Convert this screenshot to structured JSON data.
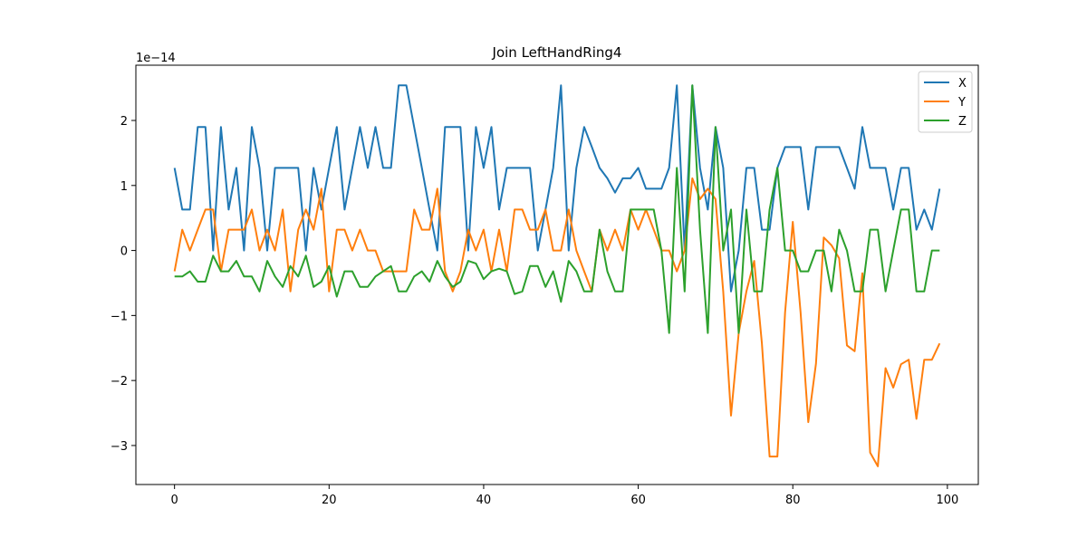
{
  "chart_data": {
    "type": "line",
    "title": "Join LeftHandRing4",
    "xlabel": "",
    "ylabel": "",
    "offset_label": "1e−14",
    "xlim": [
      -5,
      104
    ],
    "ylim": [
      -3.6,
      2.85
    ],
    "x_ticks": [
      0,
      20,
      40,
      60,
      80,
      100
    ],
    "y_ticks": [
      -3,
      -2,
      -1,
      0,
      1,
      2
    ],
    "y_tick_labels": [
      "−3",
      "−2",
      "−1",
      "0",
      "1",
      "2"
    ],
    "grid": false,
    "legend_position": "top-right",
    "x": [
      0,
      1,
      2,
      3,
      4,
      5,
      6,
      7,
      8,
      9,
      10,
      11,
      12,
      13,
      14,
      15,
      16,
      17,
      18,
      19,
      20,
      21,
      22,
      23,
      24,
      25,
      26,
      27,
      28,
      29,
      30,
      31,
      32,
      33,
      34,
      35,
      36,
      37,
      38,
      39,
      40,
      41,
      42,
      43,
      44,
      45,
      46,
      47,
      48,
      49,
      50,
      51,
      52,
      53,
      54,
      55,
      56,
      57,
      58,
      59,
      60,
      61,
      62,
      63,
      64,
      65,
      66,
      67,
      68,
      69,
      70,
      71,
      72,
      73,
      74,
      75,
      76,
      77,
      78,
      79,
      80,
      81,
      82,
      83,
      84,
      85,
      86,
      87,
      88,
      89,
      90,
      91,
      92,
      93,
      94,
      95,
      96,
      97,
      98,
      99
    ],
    "series": [
      {
        "name": "X",
        "color": "#1f77b4",
        "values": [
          1.27,
          0.63,
          0.63,
          1.9,
          1.9,
          0.0,
          1.9,
          0.63,
          1.27,
          0.0,
          1.9,
          1.27,
          0.0,
          1.27,
          1.27,
          1.27,
          1.27,
          0.0,
          1.27,
          0.63,
          1.27,
          1.9,
          0.63,
          1.27,
          1.9,
          1.27,
          1.9,
          1.27,
          1.27,
          2.54,
          2.54,
          1.9,
          1.27,
          0.63,
          0.0,
          1.9,
          1.9,
          1.9,
          0.0,
          1.9,
          1.27,
          1.9,
          0.63,
          1.27,
          1.27,
          1.27,
          1.27,
          0.0,
          0.63,
          1.27,
          2.54,
          0.0,
          1.27,
          1.9,
          1.59,
          1.27,
          1.11,
          0.89,
          1.11,
          1.11,
          1.27,
          0.95,
          0.95,
          0.95,
          1.27,
          2.54,
          0.0,
          2.54,
          1.27,
          0.63,
          1.9,
          1.27,
          -0.63,
          0.0,
          1.27,
          1.27,
          0.32,
          0.32,
          1.27,
          1.59,
          1.59,
          1.59,
          0.63,
          1.59,
          1.59,
          1.59,
          1.59,
          1.27,
          0.95,
          1.9,
          1.27,
          1.27,
          1.27,
          0.63,
          1.27,
          1.27,
          0.32,
          0.63,
          0.32,
          0.95
        ]
      },
      {
        "name": "Y",
        "color": "#ff7f0e",
        "values": [
          -0.32,
          0.32,
          0.0,
          0.32,
          0.63,
          0.63,
          -0.32,
          0.32,
          0.32,
          0.32,
          0.63,
          0.0,
          0.32,
          0.0,
          0.63,
          -0.63,
          0.32,
          0.63,
          0.32,
          0.95,
          -0.63,
          0.32,
          0.32,
          0.0,
          0.32,
          0.0,
          0.0,
          -0.32,
          -0.32,
          -0.32,
          -0.32,
          0.63,
          0.32,
          0.32,
          0.95,
          -0.32,
          -0.63,
          -0.32,
          0.32,
          0.0,
          0.32,
          -0.32,
          0.32,
          -0.32,
          0.63,
          0.63,
          0.32,
          0.32,
          0.63,
          0.0,
          0.0,
          0.63,
          0.0,
          -0.32,
          -0.63,
          0.32,
          0.0,
          0.32,
          0.0,
          0.63,
          0.32,
          0.63,
          0.32,
          0.0,
          0.0,
          -0.32,
          0.0,
          1.11,
          0.79,
          0.95,
          0.79,
          -0.63,
          -2.54,
          -1.27,
          -0.63,
          -0.16,
          -1.43,
          -3.17,
          -3.17,
          -0.95,
          0.44,
          -0.95,
          -2.64,
          -1.74,
          0.2,
          0.08,
          -0.12,
          -1.46,
          -1.55,
          -0.35,
          -3.11,
          -3.32,
          -1.81,
          -2.11,
          -1.75,
          -1.68,
          -2.59,
          -1.68,
          -1.68,
          -1.43
        ]
      },
      {
        "name": "Z",
        "color": "#2ca02c",
        "values": [
          -0.4,
          -0.4,
          -0.32,
          -0.48,
          -0.48,
          -0.08,
          -0.32,
          -0.32,
          -0.16,
          -0.4,
          -0.4,
          -0.63,
          -0.16,
          -0.4,
          -0.56,
          -0.24,
          -0.4,
          -0.08,
          -0.56,
          -0.48,
          -0.24,
          -0.71,
          -0.32,
          -0.32,
          -0.56,
          -0.56,
          -0.4,
          -0.32,
          -0.24,
          -0.63,
          -0.63,
          -0.4,
          -0.32,
          -0.48,
          -0.16,
          -0.4,
          -0.56,
          -0.48,
          -0.16,
          -0.2,
          -0.44,
          -0.32,
          -0.28,
          -0.32,
          -0.67,
          -0.63,
          -0.24,
          -0.24,
          -0.56,
          -0.32,
          -0.79,
          -0.16,
          -0.32,
          -0.63,
          -0.63,
          0.32,
          -0.32,
          -0.63,
          -0.63,
          0.63,
          0.63,
          0.63,
          0.63,
          0.0,
          -1.27,
          1.27,
          -0.63,
          2.54,
          0.32,
          -1.27,
          1.9,
          0.0,
          0.63,
          -1.27,
          0.63,
          -0.63,
          -0.63,
          0.63,
          1.27,
          0.0,
          0.0,
          -0.32,
          -0.32,
          0.0,
          0.0,
          -0.63,
          0.32,
          0.0,
          -0.63,
          -0.63,
          0.32,
          0.32,
          -0.63,
          0.0,
          0.63,
          0.63,
          -0.63,
          -0.63,
          0.0,
          0.0
        ]
      }
    ]
  }
}
